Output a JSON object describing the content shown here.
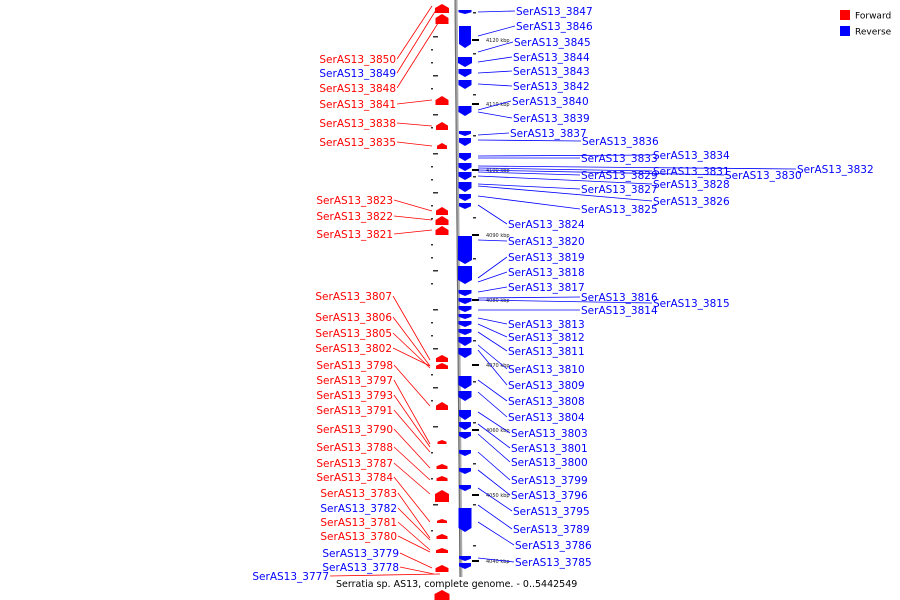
{
  "caption": "Serratia sp. AS13, complete genome. - 0..5442549",
  "legend": {
    "items": [
      {
        "label": "Forward",
        "color": "#ff0000"
      },
      {
        "label": "Reverse",
        "color": "#0000ff"
      }
    ]
  },
  "colors": {
    "forward": "#ff0000",
    "reverse": "#0000ff",
    "backbone": "#999999"
  },
  "ticks": [
    "4120 kbp",
    "4110 kbp",
    "4100 kbp",
    "4090 kbp",
    "4080 kbp",
    "4070 kbp",
    "4060 kbp",
    "4050 kbp",
    "4040 kbp"
  ],
  "forward_genes": [
    "SerAS13_3850",
    "SerAS13_3849",
    "SerAS13_3848",
    "SerAS13_3841",
    "SerAS13_3838",
    "SerAS13_3835",
    "SerAS13_3823",
    "SerAS13_3822",
    "SerAS13_3821",
    "SerAS13_3807",
    "SerAS13_3806",
    "SerAS13_3805",
    "SerAS13_3802",
    "SerAS13_3798",
    "SerAS13_3797",
    "SerAS13_3793",
    "SerAS13_3791",
    "SerAS13_3790",
    "SerAS13_3788",
    "SerAS13_3787",
    "SerAS13_3784",
    "SerAS13_3783",
    "SerAS13_3782",
    "SerAS13_3781",
    "SerAS13_3780",
    "SerAS13_3779",
    "SerAS13_3778",
    "SerAS13_3777"
  ],
  "reverse_genes": [
    "SerAS13_3847",
    "SerAS13_3846",
    "SerAS13_3845",
    "SerAS13_3844",
    "SerAS13_3843",
    "SerAS13_3842",
    "SerAS13_3840",
    "SerAS13_3839",
    "SerAS13_3837",
    "SerAS13_3836",
    "SerAS13_3834",
    "SerAS13_3833",
    "SerAS13_3832",
    "SerAS13_3831",
    "SerAS13_3830",
    "SerAS13_3829",
    "SerAS13_3828",
    "SerAS13_3827",
    "SerAS13_3826",
    "SerAS13_3825",
    "SerAS13_3824",
    "SerAS13_3820",
    "SerAS13_3819",
    "SerAS13_3818",
    "SerAS13_3817",
    "SerAS13_3816",
    "SerAS13_3815",
    "SerAS13_3814",
    "SerAS13_3813",
    "SerAS13_3812",
    "SerAS13_3811",
    "SerAS13_3810",
    "SerAS13_3809",
    "SerAS13_3808",
    "SerAS13_3804",
    "SerAS13_3803",
    "SerAS13_3801",
    "SerAS13_3800",
    "SerAS13_3799",
    "SerAS13_3796",
    "SerAS13_3795",
    "SerAS13_3789",
    "SerAS13_3786",
    "SerAS13_3785"
  ]
}
